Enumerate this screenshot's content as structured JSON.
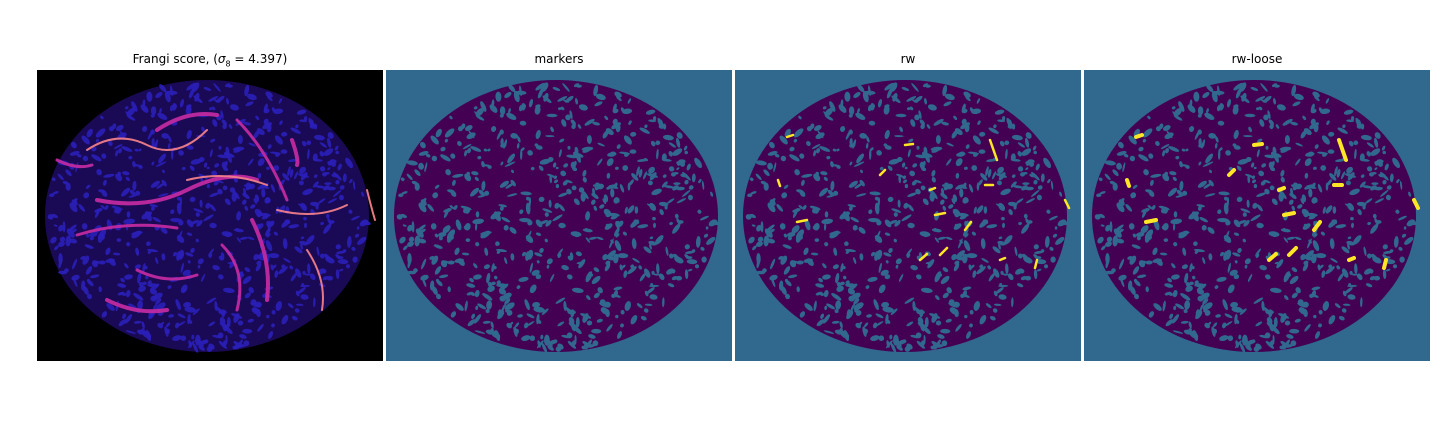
{
  "figure": {
    "panels": [
      {
        "title_prefix": "Frangi score, (",
        "title_sigma": "σ",
        "title_sub": "8",
        "title_suffix": " = 4.397)",
        "colormap": "magma"
      },
      {
        "title": "markers",
        "colormap": "viridis"
      },
      {
        "title": "rw",
        "colormap": "viridis"
      },
      {
        "title": "rw-loose",
        "colormap": "viridis"
      }
    ]
  },
  "colors": {
    "black": "#000000",
    "deep_purple": "#3a0a6e",
    "blue_purple": "#2a1fb8",
    "magenta": "#c02aa0",
    "orange_pink": "#f07e8a",
    "viridis_dark": "#440154",
    "viridis_teal": "#31688e",
    "viridis_yellow": "#fde725",
    "viridis_green": "#35b779"
  }
}
